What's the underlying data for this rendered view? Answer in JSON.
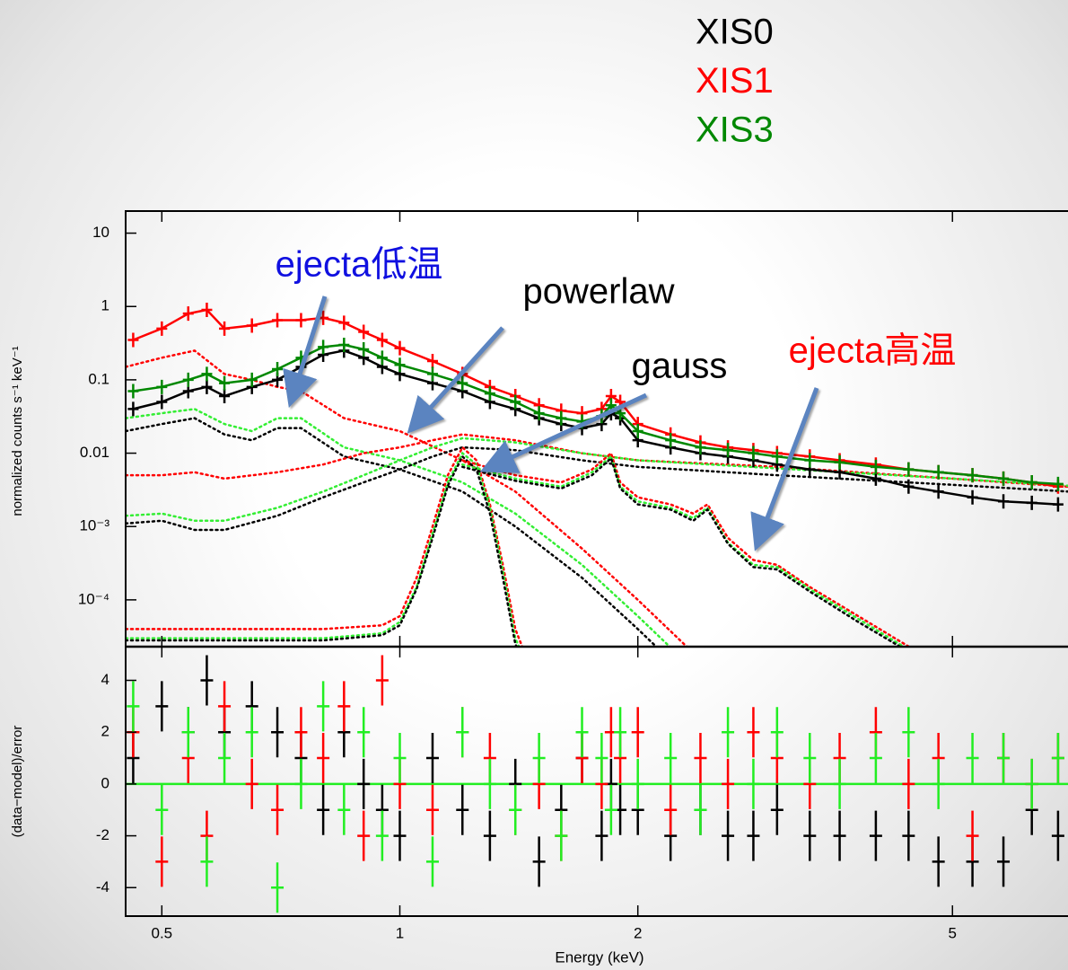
{
  "chart_data": [
    {
      "type": "line",
      "y_label": "normalized counts s⁻¹ keV⁻¹",
      "xscale": "log",
      "yscale": "log",
      "xlim": [
        0.45,
        7
      ],
      "ylim": [
        2.3e-05,
        20
      ],
      "yticks": [
        10,
        1,
        0.1,
        0.01,
        {
          "value": 0.001,
          "label": "10⁻³"
        },
        {
          "value": 0.0001,
          "label": "10⁻⁴"
        }
      ],
      "x": [
        0.46,
        0.5,
        0.54,
        0.57,
        0.6,
        0.65,
        0.7,
        0.75,
        0.8,
        0.85,
        0.9,
        0.95,
        1.0,
        1.1,
        1.2,
        1.3,
        1.4,
        1.5,
        1.6,
        1.7,
        1.8,
        1.85,
        1.9,
        2.0,
        2.2,
        2.4,
        2.6,
        2.8,
        3.0,
        3.3,
        3.6,
        4.0,
        4.4,
        4.8,
        5.3,
        5.8,
        6.3,
        6.8
      ],
      "series": [
        {
          "name": "XIS0",
          "color": "#000000",
          "values": [
            0.04,
            0.05,
            0.07,
            0.08,
            0.06,
            0.08,
            0.1,
            0.15,
            0.22,
            0.25,
            0.2,
            0.15,
            0.12,
            0.09,
            0.07,
            0.05,
            0.04,
            0.03,
            0.025,
            0.022,
            0.025,
            0.035,
            0.03,
            0.015,
            0.012,
            0.01,
            0.009,
            0.008,
            0.007,
            0.006,
            0.0055,
            0.0045,
            0.0035,
            0.003,
            0.0025,
            0.0022,
            0.0021,
            0.002
          ]
        },
        {
          "name": "XIS1",
          "color": "#ff0000",
          "values": [
            0.35,
            0.5,
            0.8,
            0.9,
            0.5,
            0.55,
            0.65,
            0.65,
            0.7,
            0.6,
            0.45,
            0.35,
            0.27,
            0.18,
            0.12,
            0.08,
            0.06,
            0.045,
            0.038,
            0.035,
            0.04,
            0.06,
            0.05,
            0.025,
            0.018,
            0.014,
            0.012,
            0.011,
            0.01,
            0.009,
            0.008,
            0.007,
            0.006,
            0.0055,
            0.005,
            0.0045,
            0.004,
            0.0035
          ]
        },
        {
          "name": "XIS3",
          "color": "#008800",
          "values": [
            0.07,
            0.08,
            0.1,
            0.12,
            0.09,
            0.1,
            0.14,
            0.2,
            0.28,
            0.3,
            0.26,
            0.2,
            0.16,
            0.12,
            0.09,
            0.065,
            0.05,
            0.035,
            0.03,
            0.027,
            0.032,
            0.045,
            0.035,
            0.02,
            0.015,
            0.012,
            0.011,
            0.01,
            0.009,
            0.008,
            0.0075,
            0.0065,
            0.006,
            0.0055,
            0.005,
            0.0045,
            0.004,
            0.0038
          ]
        }
      ],
      "components": [
        {
          "label": "ejecta低温",
          "label_color": "#1010e0",
          "x": [
            0.45,
            0.5,
            0.55,
            0.6,
            0.65,
            0.7,
            0.75,
            0.85,
            1.0,
            1.2,
            1.4,
            1.7,
            2.0,
            2.5
          ],
          "curves": [
            {
              "color": "#ff0000",
              "values": [
                0.15,
                0.2,
                0.25,
                0.12,
                0.1,
                0.08,
                0.07,
                0.03,
                0.02,
                0.008,
                0.003,
                0.0005,
                0.0001,
                1e-05
              ]
            },
            {
              "color": "#33ee33",
              "values": [
                0.03,
                0.035,
                0.04,
                0.025,
                0.02,
                0.03,
                0.03,
                0.012,
                0.008,
                0.004,
                0.0015,
                0.0003,
                6e-05,
                6e-06
              ]
            },
            {
              "color": "#000000",
              "values": [
                0.02,
                0.025,
                0.03,
                0.018,
                0.015,
                0.022,
                0.022,
                0.009,
                0.006,
                0.003,
                0.001,
                0.0002,
                4e-05,
                4e-06
              ]
            }
          ]
        },
        {
          "label": "powerlaw",
          "label_color": "#000000",
          "x": [
            0.45,
            0.5,
            0.55,
            0.6,
            0.7,
            0.8,
            0.9,
            1.0,
            1.1,
            1.2,
            1.4,
            1.7,
            2.0,
            3.0,
            5.0,
            7.0
          ],
          "curves": [
            {
              "color": "#ff0000",
              "values": [
                0.005,
                0.005,
                0.0055,
                0.0045,
                0.0055,
                0.007,
                0.01,
                0.012,
                0.015,
                0.018,
                0.015,
                0.01,
                0.008,
                0.0065,
                0.0045,
                0.0035
              ]
            },
            {
              "color": "#33ee33",
              "values": [
                0.0014,
                0.0015,
                0.0012,
                0.0012,
                0.0018,
                0.003,
                0.005,
                0.008,
                0.012,
                0.016,
                0.014,
                0.01,
                0.008,
                0.0062,
                0.0045,
                0.0036
              ]
            },
            {
              "color": "#000000",
              "values": [
                0.0011,
                0.0012,
                0.0009,
                0.0009,
                0.0014,
                0.0025,
                0.004,
                0.006,
                0.009,
                0.012,
                0.011,
                0.008,
                0.0065,
                0.005,
                0.0037,
                0.003
              ]
            }
          ]
        },
        {
          "label": "gauss",
          "label_color": "#000000",
          "x": [
            0.45,
            0.6,
            0.8,
            0.95,
            1.0,
            1.05,
            1.1,
            1.15,
            1.2,
            1.25,
            1.3,
            1.35,
            1.4,
            1.6,
            2.0
          ],
          "curves": [
            {
              "color": "#ff0000",
              "values": [
                4e-05,
                4e-05,
                4e-05,
                4.5e-05,
                6e-05,
                0.0002,
                0.001,
                0.005,
                0.012,
                0.008,
                0.002,
                0.0003,
                4e-05,
                1e-06,
                1e-07
              ]
            },
            {
              "color": "#33ee33",
              "values": [
                3e-05,
                3e-05,
                3e-05,
                3.5e-05,
                5e-05,
                0.00015,
                0.0008,
                0.004,
                0.01,
                0.007,
                0.0018,
                0.00025,
                3e-05,
                1e-06,
                1e-07
              ]
            },
            {
              "color": "#000000",
              "values": [
                2.8e-05,
                2.8e-05,
                2.8e-05,
                3.3e-05,
                4.5e-05,
                0.00014,
                0.0007,
                0.0036,
                0.009,
                0.006,
                0.0015,
                0.0002,
                2.5e-05,
                1e-06,
                1e-07
              ]
            }
          ]
        },
        {
          "label": "ejecta高温",
          "label_color": "#ff0000",
          "x": [
            1.2,
            1.4,
            1.6,
            1.75,
            1.85,
            1.9,
            2.0,
            2.2,
            2.35,
            2.45,
            2.6,
            2.8,
            3.0,
            3.3,
            3.8,
            4.5
          ],
          "curves": [
            {
              "color": "#ff0000",
              "values": [
                0.008,
                0.005,
                0.004,
                0.006,
                0.01,
                0.004,
                0.0025,
                0.002,
                0.0015,
                0.002,
                0.0007,
                0.00035,
                0.0003,
                0.00015,
                6e-05,
                2e-05
              ]
            },
            {
              "color": "#33ee33",
              "values": [
                0.007,
                0.0045,
                0.0035,
                0.0055,
                0.009,
                0.0035,
                0.0022,
                0.0018,
                0.0013,
                0.0018,
                0.0006,
                0.0003,
                0.00028,
                0.00014,
                5.5e-05,
                1.8e-05
              ]
            },
            {
              "color": "#000000",
              "values": [
                0.0065,
                0.0042,
                0.0033,
                0.005,
                0.0085,
                0.0033,
                0.002,
                0.0017,
                0.0012,
                0.0017,
                0.00058,
                0.00028,
                0.00026,
                0.00013,
                5e-05,
                1.7e-05
              ]
            }
          ]
        }
      ]
    },
    {
      "type": "scatter",
      "x_label": "Energy (keV)",
      "y_label": "(data−model)/error",
      "xscale": "log",
      "xlim": [
        0.45,
        7
      ],
      "ylim": [
        -5.1,
        5.3
      ],
      "xticks": [
        0.5,
        1,
        2,
        5
      ],
      "yticks": [
        4,
        2,
        0,
        -2,
        -4
      ],
      "x": [
        0.46,
        0.5,
        0.54,
        0.57,
        0.6,
        0.65,
        0.7,
        0.75,
        0.8,
        0.85,
        0.9,
        0.95,
        1.0,
        1.1,
        1.2,
        1.3,
        1.4,
        1.5,
        1.6,
        1.7,
        1.8,
        1.85,
        1.9,
        2.0,
        2.2,
        2.4,
        2.6,
        2.8,
        3.0,
        3.3,
        3.6,
        4.0,
        4.4,
        4.8,
        5.3,
        5.8,
        6.3,
        6.8
      ],
      "series": [
        {
          "color": "#000000",
          "values": [
            1,
            3,
            2,
            4,
            2,
            3,
            2,
            1,
            -1,
            2,
            0,
            -1,
            -2,
            1,
            -1,
            -2,
            0,
            -3,
            -1,
            1,
            -2,
            0,
            -1,
            -1,
            -2,
            -1,
            -2,
            -2,
            -1,
            -2,
            -2,
            -2,
            -2,
            -3,
            -3,
            -3,
            -1,
            -2
          ]
        },
        {
          "color": "#ff0000",
          "values": [
            2,
            -3,
            1,
            -2,
            3,
            0,
            -1,
            2,
            1,
            3,
            -2,
            4,
            0,
            -1,
            2,
            1,
            -1,
            0,
            -2,
            1,
            0,
            2,
            1,
            2,
            -1,
            1,
            0,
            2,
            1,
            0,
            1,
            2,
            0,
            1,
            -2,
            1,
            0,
            1
          ]
        },
        {
          "color": "#22ee22",
          "values": [
            3,
            -1,
            2,
            -3,
            1,
            2,
            -4,
            0,
            3,
            -1,
            2,
            -2,
            1,
            -3,
            2,
            0,
            -1,
            1,
            -2,
            2,
            1,
            -1,
            2,
            0,
            1,
            -1,
            2,
            0,
            2,
            1,
            0,
            1,
            2,
            0,
            1,
            1,
            0,
            1
          ]
        }
      ]
    }
  ]
}
